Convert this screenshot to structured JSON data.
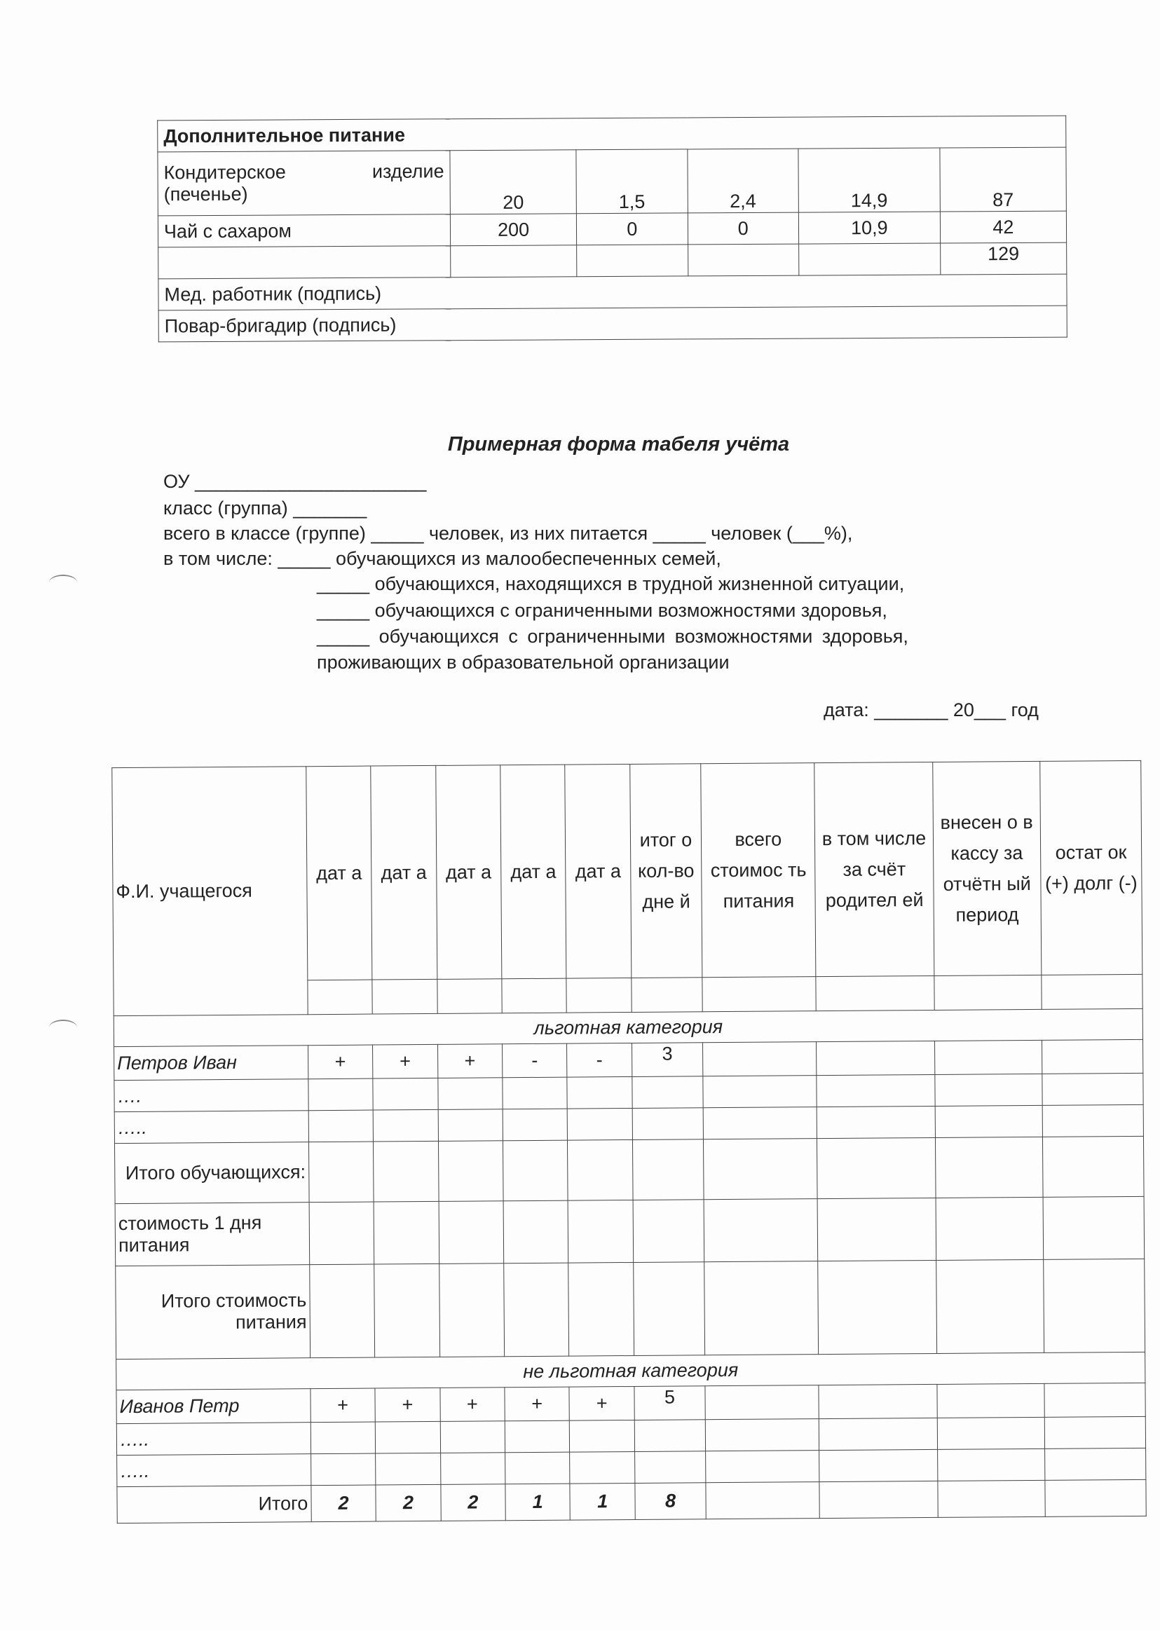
{
  "top_table": {
    "header": "Дополнительное питание",
    "rows": [
      {
        "name": "Кондитерское изделие (печенье)",
        "cells": [
          "20",
          "1,5",
          "2,4",
          "14,9",
          "87"
        ]
      },
      {
        "name": "Чай с сахаром",
        "cells": [
          "200",
          "0",
          "0",
          "10,9",
          "42"
        ]
      },
      {
        "name": "",
        "cells": [
          "",
          "",
          "",
          "",
          "129"
        ]
      }
    ],
    "signatures": [
      "Мед. работник (подпись)",
      "Повар-бригадир (подпись)"
    ]
  },
  "form": {
    "title": "Примерная форма табеля учёта",
    "lines": [
      "ОУ ______________________",
      "класс (группа) _______",
      "всего в классе (группе)  _____ человек, из них питается _____ человек (___%),",
      "в том числе:      _____ обучающихся из малообеспеченных семей,"
    ],
    "indented_lines": [
      "_____ обучающихся, находящихся в трудной жизненной ситуации,",
      "_____ обучающихся с ограниченными возможностями здоровья,",
      "_____  обучающихся  с  ограниченными  возможностями  здоровья,",
      "проживающих в образовательной организации"
    ],
    "date_line": "дата: _______ 20___ год"
  },
  "big_table": {
    "headers": [
      "Ф.И. учащегося",
      "дат а",
      "дат а",
      "дат а",
      "дат а",
      "дат а",
      "итог о кол-во дне й",
      "всего стоимос ть питания",
      "в том числе за счёт родител ей",
      "внесен о в кассу за отчётн ый период",
      "остат ок (+) долг (-)"
    ],
    "category1": "льготная категория",
    "rows1": [
      {
        "name": "Петров Иван",
        "cells": [
          "+",
          "+",
          "+",
          "-",
          "-",
          "3"
        ]
      },
      {
        "name": "….",
        "cells": []
      },
      {
        "name": "…..",
        "cells": []
      }
    ],
    "summary": [
      "Итого обучающихся:",
      "стоимость 1 дня питания",
      "Итого стоимость питания"
    ],
    "category2": "не льготная категория",
    "rows2": [
      {
        "name": "Иванов Петр",
        "cells": [
          "+",
          "+",
          "+",
          "+",
          "+",
          "5"
        ]
      },
      {
        "name": "…..",
        "cells": []
      },
      {
        "name": "…..",
        "cells": []
      }
    ],
    "total": {
      "label": "Итого",
      "cells": [
        "2",
        "2",
        "2",
        "1",
        "1",
        "8"
      ]
    }
  }
}
